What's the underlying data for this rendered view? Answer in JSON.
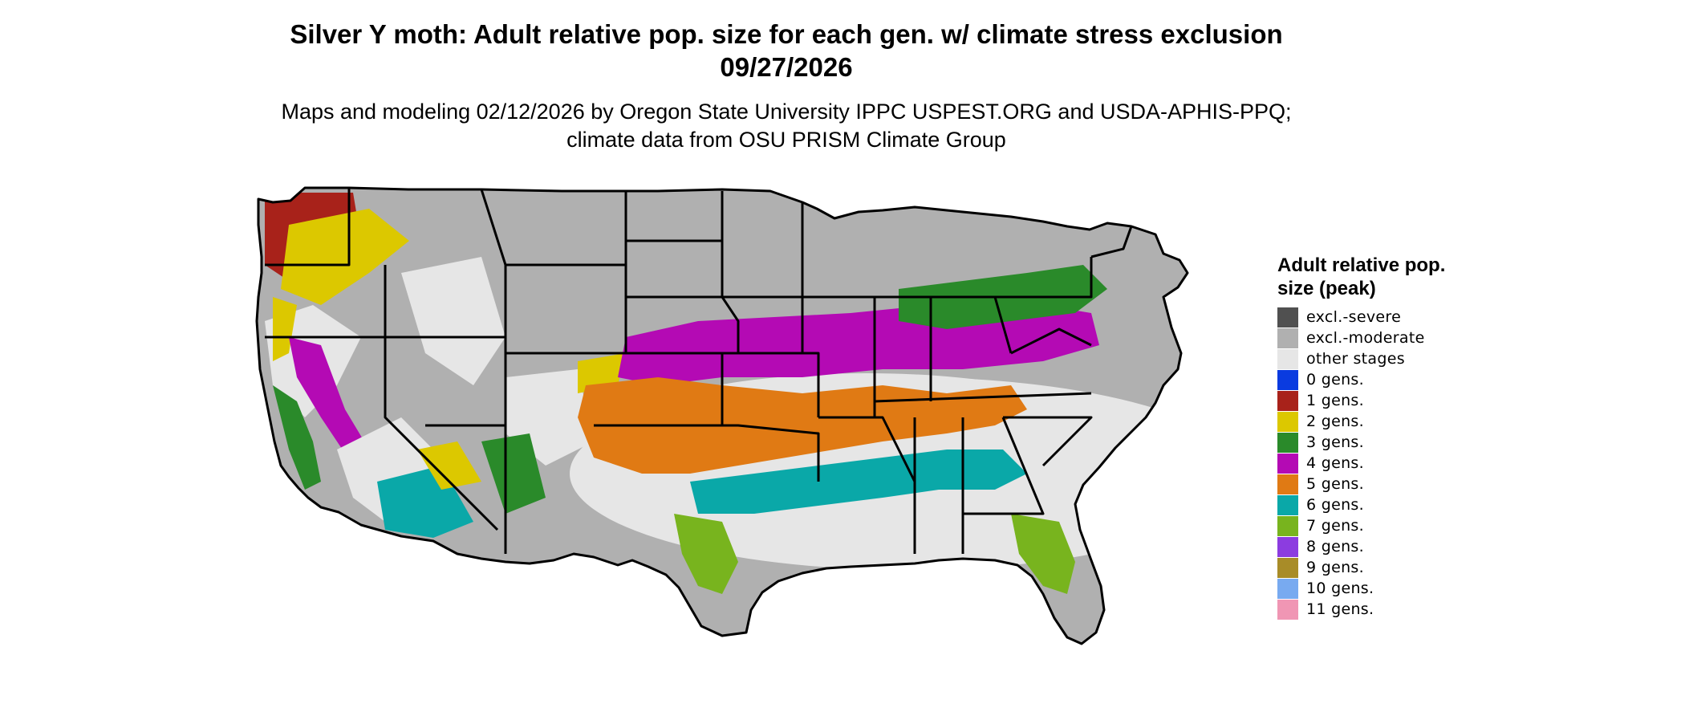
{
  "title": "Silver Y moth: Adult relative pop. size for each gen. w/ climate stress exclusion 09/27/2026",
  "subtitle": "Maps and modeling 02/12/2026 by Oregon State University IPPC USPEST.ORG and USDA-APHIS-PPQ; climate data from OSU PRISM Climate Group",
  "legend": {
    "title": "Adult relative pop. size (peak)",
    "items": [
      {
        "label": "excl.-severe",
        "color": "#505050"
      },
      {
        "label": "excl.-moderate",
        "color": "#b0b0b0"
      },
      {
        "label": "other stages",
        "color": "#e6e6e6"
      },
      {
        "label": "0 gens.",
        "color": "#0a3be0"
      },
      {
        "label": "1 gens.",
        "color": "#a8221a"
      },
      {
        "label": "2 gens.",
        "color": "#dcc800"
      },
      {
        "label": "3 gens.",
        "color": "#2a8a2a"
      },
      {
        "label": "4 gens.",
        "color": "#b40ab4"
      },
      {
        "label": "5 gens.",
        "color": "#e07a14"
      },
      {
        "label": "6 gens.",
        "color": "#0aa8a8"
      },
      {
        "label": "7 gens.",
        "color": "#78b41e"
      },
      {
        "label": "8 gens.",
        "color": "#8c3ce0"
      },
      {
        "label": "9 gens.",
        "color": "#a88c28"
      },
      {
        "label": "10 gens.",
        "color": "#78aaf0"
      },
      {
        "label": "11 gens.",
        "color": "#f096b4"
      }
    ]
  },
  "map": {
    "region": "contiguous-united-states",
    "background_color": "#b0b0b0",
    "border_color": "#000000",
    "zones": [
      {
        "region": "pacific-northwest",
        "class": "1 gens.",
        "color": "#a8221a"
      },
      {
        "region": "pacific-northwest-interior",
        "class": "2 gens.",
        "color": "#dcc800"
      },
      {
        "region": "california-central-valley",
        "class": "4 gens.",
        "color": "#b40ab4"
      },
      {
        "region": "california-coast",
        "class": "3 gens.",
        "color": "#2a8a2a"
      },
      {
        "region": "southwest-desert",
        "class": "6 gens.",
        "color": "#0aa8a8"
      },
      {
        "region": "mid-latitude-band",
        "class": "4 gens.",
        "color": "#b40ab4"
      },
      {
        "region": "ohio-valley-appalachia",
        "class": "3 gens.",
        "color": "#2a8a2a"
      },
      {
        "region": "southern-texas-to-carolinas",
        "class": "5 gens.",
        "color": "#e07a14"
      },
      {
        "region": "gulf-coast",
        "class": "6 gens.",
        "color": "#0aa8a8"
      },
      {
        "region": "south-texas-and-south-florida",
        "class": "7 gens.",
        "color": "#78b41e"
      },
      {
        "region": "southern-plains-and-southeast",
        "class": "other stages",
        "color": "#e6e6e6"
      }
    ]
  }
}
